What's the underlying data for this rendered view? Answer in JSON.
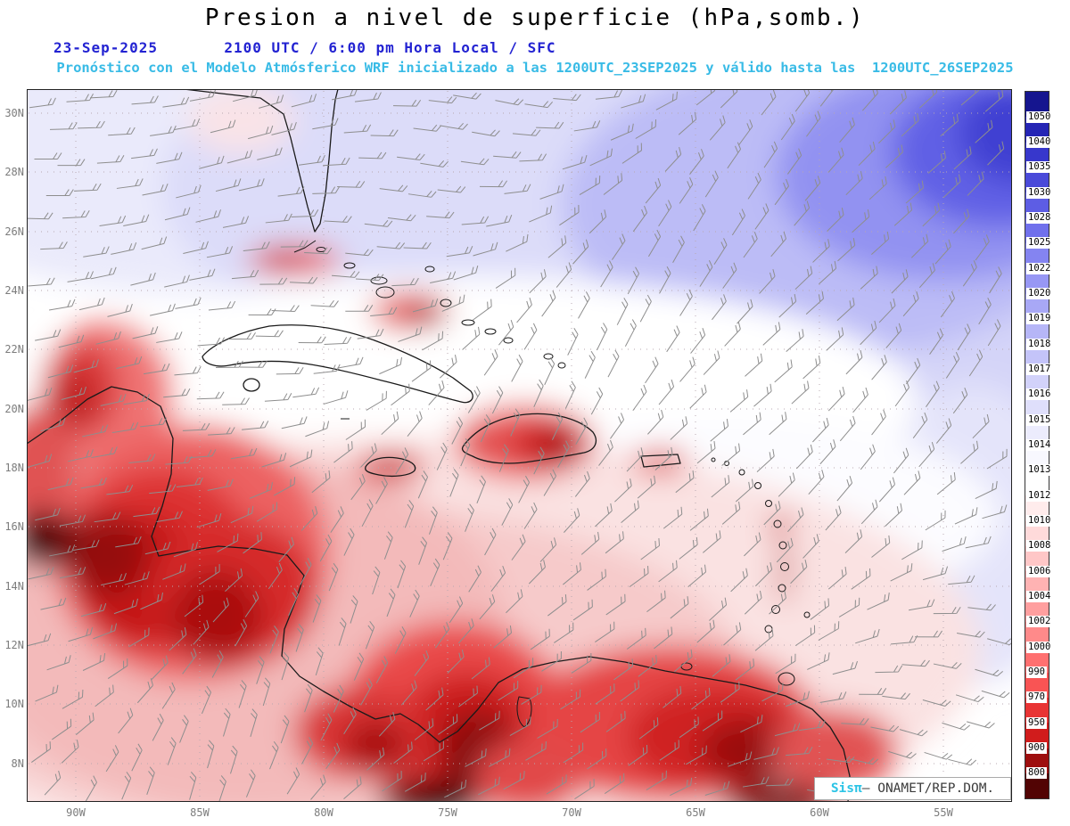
{
  "header": {
    "title": "Presion a nivel de superficie (hPa,somb.)",
    "date_line": "23-Sep-2025       2100 UTC / 6:00 pm Hora Local / SFC",
    "subtitle": "Pronóstico con el Modelo Atmósferico WRF inicializado a las 1200UTC_23SEP2025 y válido hasta las  1200UTC_26SEP2025"
  },
  "axes": {
    "lat_labels": [
      "30N",
      "28N",
      "26N",
      "24N",
      "22N",
      "20N",
      "18N",
      "16N",
      "14N",
      "12N",
      "10N",
      "8N"
    ],
    "lon_labels": [
      "90W",
      "85W",
      "80W",
      "75W",
      "70W",
      "65W",
      "60W",
      "55W"
    ]
  },
  "colorbar": {
    "unit": "hPa",
    "values": [
      1050,
      1040,
      1035,
      1030,
      1028,
      1025,
      1022,
      1020,
      1019,
      1018,
      1017,
      1016,
      1015,
      1014,
      1013,
      1012,
      1010,
      1008,
      1006,
      1004,
      1002,
      1000,
      990,
      970,
      950,
      900,
      800
    ],
    "colors": [
      "#15158f",
      "#2525b5",
      "#3737cc",
      "#4a4ad9",
      "#5d5de4",
      "#7070ec",
      "#8484f1",
      "#9797f4",
      "#a8a8f6",
      "#b6b6f7",
      "#c4c4f9",
      "#d2d2fa",
      "#dfdffb",
      "#ececfd",
      "#f8f8fe",
      "#ffffff",
      "#ffecec",
      "#ffdada",
      "#ffc7c7",
      "#ffb3b3",
      "#ff9f9f",
      "#ff8a8a",
      "#ff7070",
      "#f95454",
      "#e93434",
      "#d11c1c",
      "#9e0e0e",
      "#520404"
    ]
  },
  "branding": {
    "logo": "Sisπ",
    "text": "– ONAMET/REP.DOM."
  },
  "theme": {
    "title_color": "#000000",
    "dateline_color": "#2323d2",
    "subtitle_color": "#38bbe6",
    "axis_label_color": "#7c7c7c",
    "barb_color": "#8e8e8e",
    "coast_color": "#1a1a1a"
  }
}
